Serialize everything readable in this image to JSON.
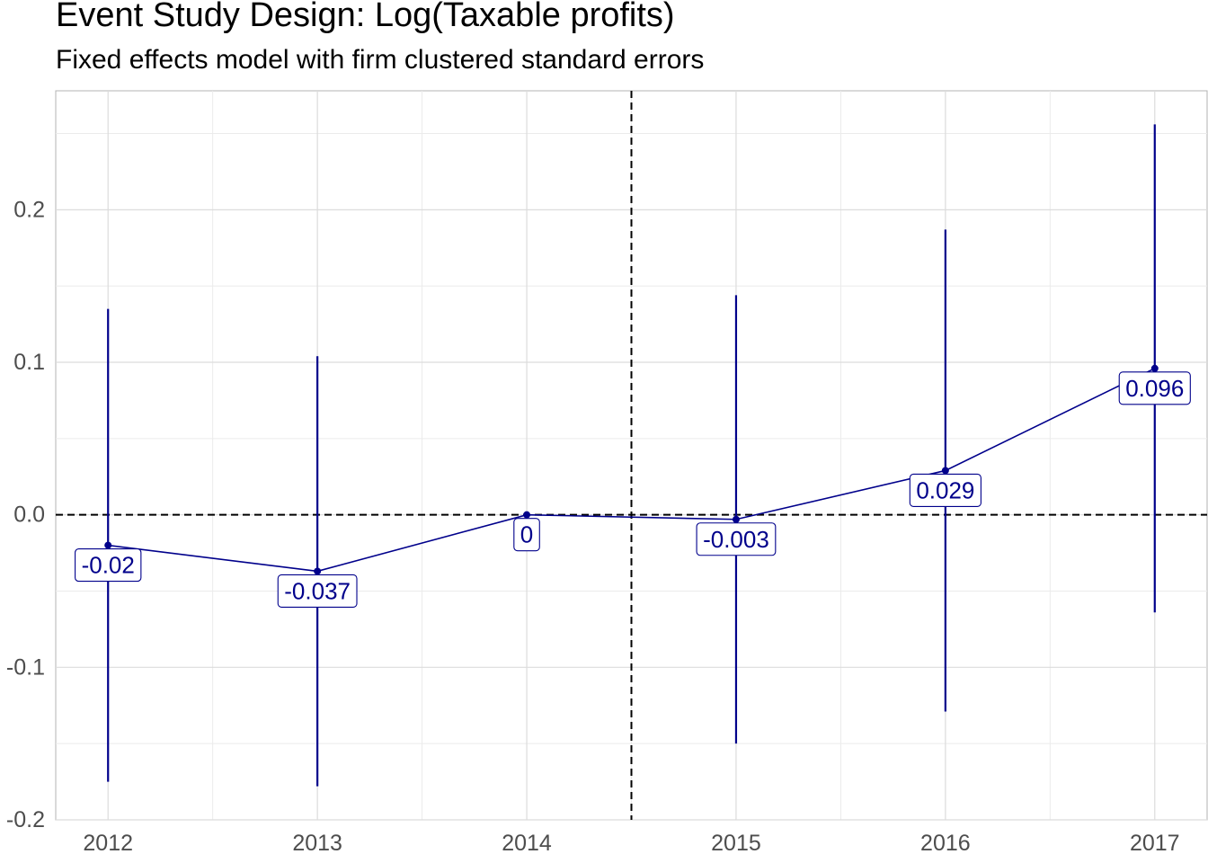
{
  "colors": {
    "series": "#00008b",
    "grid_major": "#dcdcdc",
    "grid_minor": "#ebebeb",
    "reference_line": "#000000",
    "tick_text": "#4d4d4d"
  },
  "chart_data": {
    "type": "line",
    "title": "Event Study Design: Log(Taxable profits)",
    "subtitle": "Fixed effects model with firm clustered standard errors",
    "xlabel": "",
    "ylabel": "",
    "x": [
      2012,
      2013,
      2014,
      2015,
      2016,
      2017
    ],
    "x_tick_labels": [
      "2012",
      "2013",
      "2014",
      "2015",
      "2016",
      "2017"
    ],
    "xlim": [
      2011.75,
      2017.25
    ],
    "ylim": [
      -0.2,
      0.2
    ],
    "y_ticks": [
      -0.2,
      -0.1,
      0.0,
      0.1,
      0.2
    ],
    "y_tick_labels": [
      "-0.2",
      "-0.1",
      "0.0",
      "0.1",
      "0.2"
    ],
    "y_display_range": [
      -0.2,
      0.278
    ],
    "series": [
      {
        "values": [
          -0.02,
          -0.037,
          0,
          -0.003,
          0.029,
          0.096
        ],
        "ci_lower": [
          -0.175,
          -0.178,
          0,
          -0.15,
          -0.129,
          -0.064
        ],
        "ci_upper": [
          0.135,
          0.104,
          0,
          0.144,
          0.187,
          0.256
        ],
        "data_labels": [
          "-0.02",
          "-0.037",
          "0",
          "-0.003",
          "0.029",
          "0.096"
        ]
      }
    ],
    "reference_lines": {
      "horizontal_y": 0,
      "vertical_x": 2014.5,
      "style": "dashed"
    },
    "grid": true,
    "legend": "none"
  }
}
